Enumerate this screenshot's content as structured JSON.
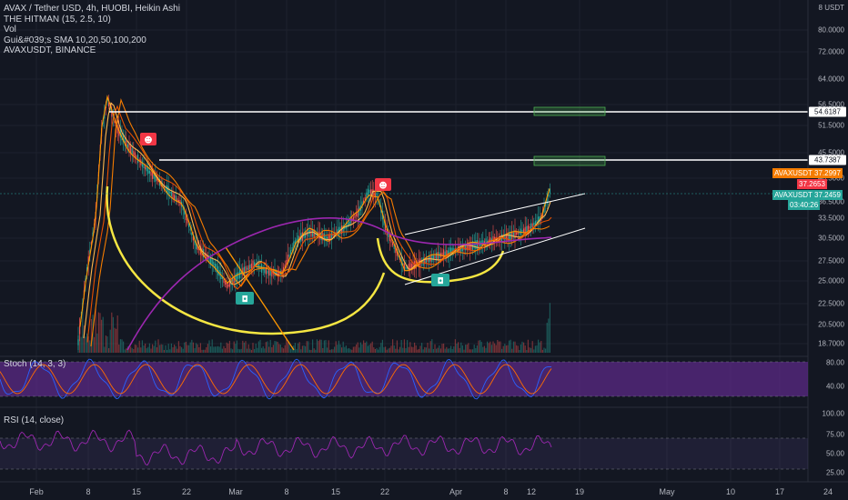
{
  "legend": {
    "title": "AVAX / Tether USD, 4h, HUOBI, Heikin Ashi",
    "indicator1": "THE HITMAN (15, 2.5, 10)",
    "indicator2": "Vol",
    "indicator3": "Gui&#039;s SMA 10,20,50,100,200",
    "indicator4": "AVAXUSDT, BINANCE"
  },
  "unit_label": "8 USDT",
  "price_axis": [
    "80.0000",
    "72.0000",
    "64.0000",
    "56.5000",
    "51.5000",
    "45.5000",
    "40.5000",
    "36.5000",
    "33.5000",
    "30.5000",
    "27.5000",
    "25.0000",
    "22.5000",
    "20.5000",
    "18.7000"
  ],
  "hlines": [
    {
      "label": "54.6187",
      "value": 54.6187
    },
    {
      "label": "43.7387",
      "value": 43.7387
    }
  ],
  "tags": [
    {
      "label": "AVAXUSDT  37.2997",
      "color": "#f57c00"
    },
    {
      "label": "37.2653",
      "color": "#f23645"
    },
    {
      "label": "AVAXUSDT  37.2459",
      "color": "#26a69a"
    },
    {
      "label": "03:40:26",
      "color": "#26a69a"
    }
  ],
  "stoch": {
    "label": "Stoch (14, 3, 3)",
    "axis": [
      "80.00",
      "40.00"
    ]
  },
  "rsi": {
    "label": "RSI (14, close)",
    "axis": [
      "100.00",
      "75.00",
      "50.00",
      "25.00"
    ]
  },
  "time_axis": [
    "Feb",
    "8",
    "15",
    "22",
    "Mar",
    "8",
    "15",
    "22",
    "Apr",
    "8",
    "12",
    "19",
    "May",
    "10",
    "17",
    "24"
  ],
  "colors": {
    "background": "#131722",
    "yellow_drawing": "#f5e642",
    "ma_purple": "#9c27b0",
    "ma_orange": "#ff9800",
    "sell_marker": "#f23645",
    "buy_marker": "#26a69a",
    "stoch_band": "#5b2a86"
  },
  "markers": {
    "sell": "sell-marker",
    "buy": "buy-marker"
  }
}
